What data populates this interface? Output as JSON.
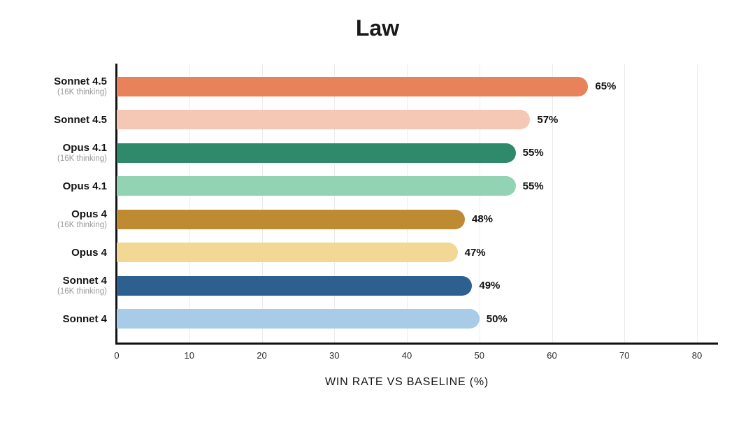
{
  "chart_data": {
    "type": "bar",
    "orientation": "horizontal",
    "title": "Law",
    "xlabel": "WIN RATE VS BASELINE (%)",
    "xlim": [
      0,
      80
    ],
    "xticks": [
      0,
      10,
      20,
      30,
      40,
      50,
      60,
      70,
      80
    ],
    "grid": true,
    "bars": [
      {
        "label": "Sonnet 4.5",
        "sublabel": "(16K thinking)",
        "value": 65,
        "value_label": "65%",
        "color": "#E8825A"
      },
      {
        "label": "Sonnet 4.5",
        "sublabel": "",
        "value": 57,
        "value_label": "57%",
        "color": "#F5C8B5"
      },
      {
        "label": "Opus 4.1",
        "sublabel": "(16K thinking)",
        "value": 55,
        "value_label": "55%",
        "color": "#2E8A6A"
      },
      {
        "label": "Opus 4.1",
        "sublabel": "",
        "value": 55,
        "value_label": "55%",
        "color": "#92D3B4"
      },
      {
        "label": "Opus 4",
        "sublabel": "(16K thinking)",
        "value": 48,
        "value_label": "48%",
        "color": "#BE8B32"
      },
      {
        "label": "Opus 4",
        "sublabel": "",
        "value": 47,
        "value_label": "47%",
        "color": "#F3D795"
      },
      {
        "label": "Sonnet 4",
        "sublabel": "(16K thinking)",
        "value": 49,
        "value_label": "49%",
        "color": "#2E608F"
      },
      {
        "label": "Sonnet 4",
        "sublabel": "",
        "value": 50,
        "value_label": "50%",
        "color": "#A8CBE8"
      }
    ]
  }
}
